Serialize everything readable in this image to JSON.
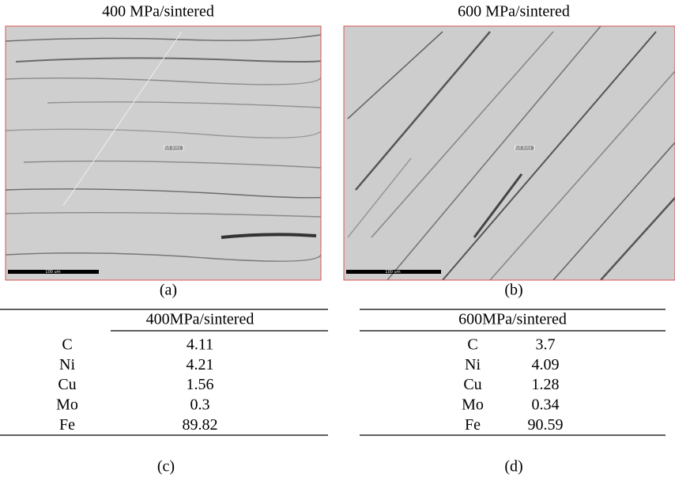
{
  "panels": [
    {
      "title": "400 MPa/sintered",
      "scale_label": "100 um",
      "area_label": "Full Area 1",
      "caption": "(a)"
    },
    {
      "title": "600 MPa/sintered",
      "scale_label": "100 um",
      "area_label": "Full Area 1",
      "caption": "(b)"
    }
  ],
  "tables": [
    {
      "header": "400MPa/sintered",
      "rows": [
        [
          "C",
          "4.11"
        ],
        [
          "Ni",
          "4.21"
        ],
        [
          "Cu",
          "1.56"
        ],
        [
          "Mo",
          "0.3"
        ],
        [
          "Fe",
          "89.82"
        ]
      ],
      "caption": "(c)"
    },
    {
      "header": "600MPa/sintered",
      "rows": [
        [
          "C",
          "3.7"
        ],
        [
          "Ni",
          "4.09"
        ],
        [
          "Cu",
          "1.28"
        ],
        [
          "Mo",
          "0.34"
        ],
        [
          "Fe",
          "90.59"
        ]
      ],
      "caption": "(d)"
    }
  ]
}
